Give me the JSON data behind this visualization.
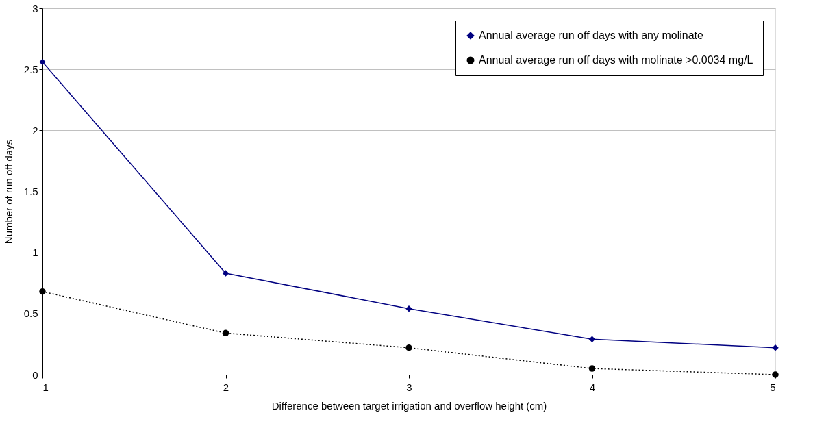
{
  "chart_data": {
    "type": "line",
    "xlabel": "Difference between target irrigation and overflow height (cm)",
    "ylabel": "Number of run off days",
    "x": [
      1,
      2,
      3,
      4,
      5
    ],
    "series": [
      {
        "name": "Annual average run off days with any molinate",
        "color": "#000080",
        "values": [
          2.56,
          0.83,
          0.54,
          0.29,
          0.22
        ],
        "marker": "diamond",
        "line_style": "solid"
      },
      {
        "name": "Annual average run off days with molinate >0.0034 mg/L",
        "color": "#000000",
        "values": [
          0.68,
          0.34,
          0.22,
          0.05,
          0.0
        ],
        "marker": "circle",
        "line_style": "dotted"
      }
    ],
    "xlim": [
      1,
      5
    ],
    "xticks": [
      1,
      2,
      3,
      4,
      5
    ],
    "ylim": [
      0,
      3
    ],
    "yticks": [
      0,
      0.5,
      1,
      1.5,
      2,
      2.5,
      3
    ],
    "grid": "y",
    "legend": "top right"
  }
}
